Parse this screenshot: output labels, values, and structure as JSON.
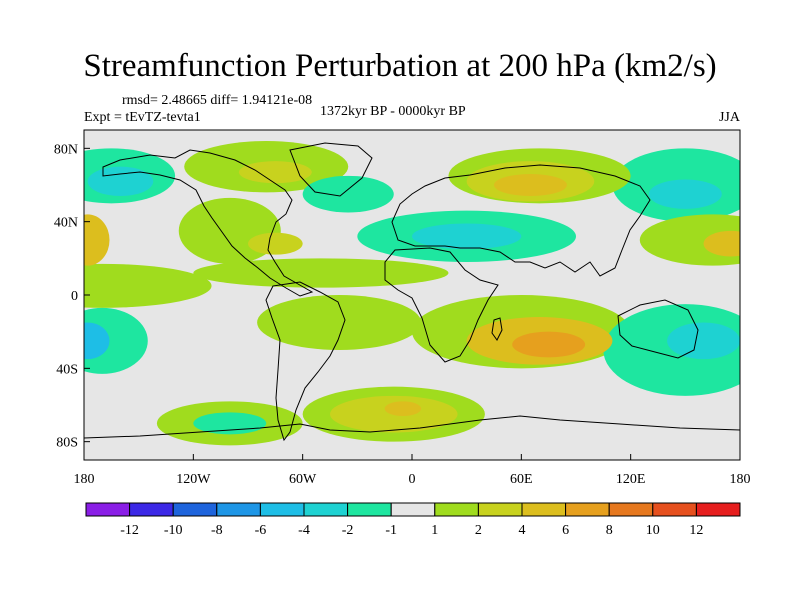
{
  "title": "Streamfunction Perturbation at 200 hPa (km2/s)",
  "stats": "rmsd= 2.48665 diff= 1.94121e-08",
  "experiment": "Expt = tEvTZ-tevta1",
  "period": "1372kyr BP - 0000kyr BP",
  "season": "JJA",
  "lat_labels": [
    "80N",
    "40N",
    "0",
    "40S",
    "80S"
  ],
  "lon_labels": [
    "180",
    "120W",
    "60W",
    "0",
    "60E",
    "120E",
    "180"
  ],
  "colorbar": {
    "labels": [
      "-12",
      "-10",
      "-8",
      "-6",
      "-4",
      "-2",
      "-1",
      "1",
      "2",
      "4",
      "6",
      "8",
      "10",
      "12"
    ],
    "colors": [
      "#8a1ee6",
      "#3c28e6",
      "#1e64dc",
      "#1e96e6",
      "#1ebee6",
      "#1ed2d2",
      "#1ee6a0",
      "#e6e6e6",
      "#a0dc1e",
      "#c8d21e",
      "#dcbe1e",
      "#e6a01e",
      "#e6781e",
      "#e6501e",
      "#e61e1e"
    ]
  },
  "map_regions": [
    {
      "name": "n-pacific-pos",
      "level": 3,
      "lon": -178,
      "lat": 30,
      "rlon": 12,
      "rlat": 14
    },
    {
      "name": "ne-pacific-pos",
      "level": 1,
      "lon": -170,
      "lat": 5,
      "rlon": 60,
      "rlat": 12
    },
    {
      "name": "alaska-neg",
      "level": -1,
      "lon": -165,
      "lat": 65,
      "rlon": 35,
      "rlat": 15
    },
    {
      "name": "alaska-neg-core",
      "level": -2,
      "lon": -160,
      "lat": 62,
      "rlon": 18,
      "rlat": 8
    },
    {
      "name": "canada-pos",
      "level": 1,
      "lon": -80,
      "lat": 70,
      "rlon": 45,
      "rlat": 14
    },
    {
      "name": "canada-pos-core",
      "level": 2,
      "lon": -75,
      "lat": 67,
      "rlon": 20,
      "rlat": 6
    },
    {
      "name": "n-america-pos",
      "level": 1,
      "lon": -100,
      "lat": 35,
      "rlon": 28,
      "rlat": 18
    },
    {
      "name": "caribbean-pos",
      "level": 2,
      "lon": -75,
      "lat": 28,
      "rlon": 15,
      "rlat": 6
    },
    {
      "name": "ne-atl-neg",
      "level": -1,
      "lon": -35,
      "lat": 55,
      "rlon": 25,
      "rlat": 10
    },
    {
      "name": "trop-atl-pos",
      "level": 1,
      "lon": -50,
      "lat": 12,
      "rlon": 70,
      "rlat": 8
    },
    {
      "name": "siberia-pos",
      "level": 1,
      "lon": 70,
      "lat": 65,
      "rlon": 50,
      "rlat": 15
    },
    {
      "name": "siberia-pos-mid",
      "level": 2,
      "lon": 65,
      "lat": 62,
      "rlon": 35,
      "rlat": 11
    },
    {
      "name": "siberia-pos-core",
      "level": 3,
      "lon": 65,
      "lat": 60,
      "rlon": 20,
      "rlat": 6
    },
    {
      "name": "asia-neg",
      "level": -1,
      "lon": 30,
      "lat": 32,
      "rlon": 60,
      "rlat": 14
    },
    {
      "name": "asia-neg-core",
      "level": -2,
      "lon": 30,
      "lat": 32,
      "rlon": 30,
      "rlat": 7
    },
    {
      "name": "n-pac-e-pos",
      "level": 1,
      "lon": 165,
      "lat": 30,
      "rlon": 40,
      "rlat": 14
    },
    {
      "name": "n-pac-e-pos-core",
      "level": 3,
      "lon": 175,
      "lat": 28,
      "rlon": 15,
      "rlat": 7
    },
    {
      "name": "ne-asia-neg",
      "level": -1,
      "lon": 150,
      "lat": 60,
      "rlon": 40,
      "rlat": 20
    },
    {
      "name": "ne-asia-neg-core",
      "level": -2,
      "lon": 150,
      "lat": 55,
      "rlon": 20,
      "rlat": 8
    },
    {
      "name": "s-atl-pos",
      "level": 1,
      "lon": -40,
      "lat": -15,
      "rlon": 45,
      "rlat": 15
    },
    {
      "name": "s-ind-pos",
      "level": 1,
      "lon": 60,
      "lat": -20,
      "rlon": 60,
      "rlat": 20
    },
    {
      "name": "s-ind-pos-mid",
      "level": 3,
      "lon": 70,
      "lat": -25,
      "rlon": 40,
      "rlat": 13
    },
    {
      "name": "s-ind-pos-core",
      "level": 4,
      "lon": 75,
      "lat": -27,
      "rlon": 20,
      "rlat": 7
    },
    {
      "name": "s-pac-w-neg",
      "level": -1,
      "lon": -170,
      "lat": -25,
      "rlon": 25,
      "rlat": 18
    },
    {
      "name": "s-pac-w-neg-core",
      "level": -3,
      "lon": -178,
      "lat": -25,
      "rlon": 12,
      "rlat": 10
    },
    {
      "name": "s-pac-neg",
      "level": -1,
      "lon": 150,
      "lat": -30,
      "rlon": 45,
      "rlat": 25
    },
    {
      "name": "s-pac-neg-core",
      "level": -2,
      "lon": 160,
      "lat": -25,
      "rlon": 20,
      "rlat": 10
    },
    {
      "name": "se-pac-pos",
      "level": 1,
      "lon": -100,
      "lat": -70,
      "rlon": 40,
      "rlat": 12
    },
    {
      "name": "se-pac-neg",
      "level": -1,
      "lon": -100,
      "lat": -70,
      "rlon": 20,
      "rlat": 6
    },
    {
      "name": "s-ocean-pos",
      "level": 1,
      "lon": -10,
      "lat": -65,
      "rlon": 50,
      "rlat": 15
    },
    {
      "name": "s-ocean-pos-mid",
      "level": 2,
      "lon": -10,
      "lat": -65,
      "rlon": 35,
      "rlat": 10
    },
    {
      "name": "s-ocean-pos-core",
      "level": 3,
      "lon": -5,
      "lat": -62,
      "rlon": 10,
      "rlat": 4
    }
  ]
}
